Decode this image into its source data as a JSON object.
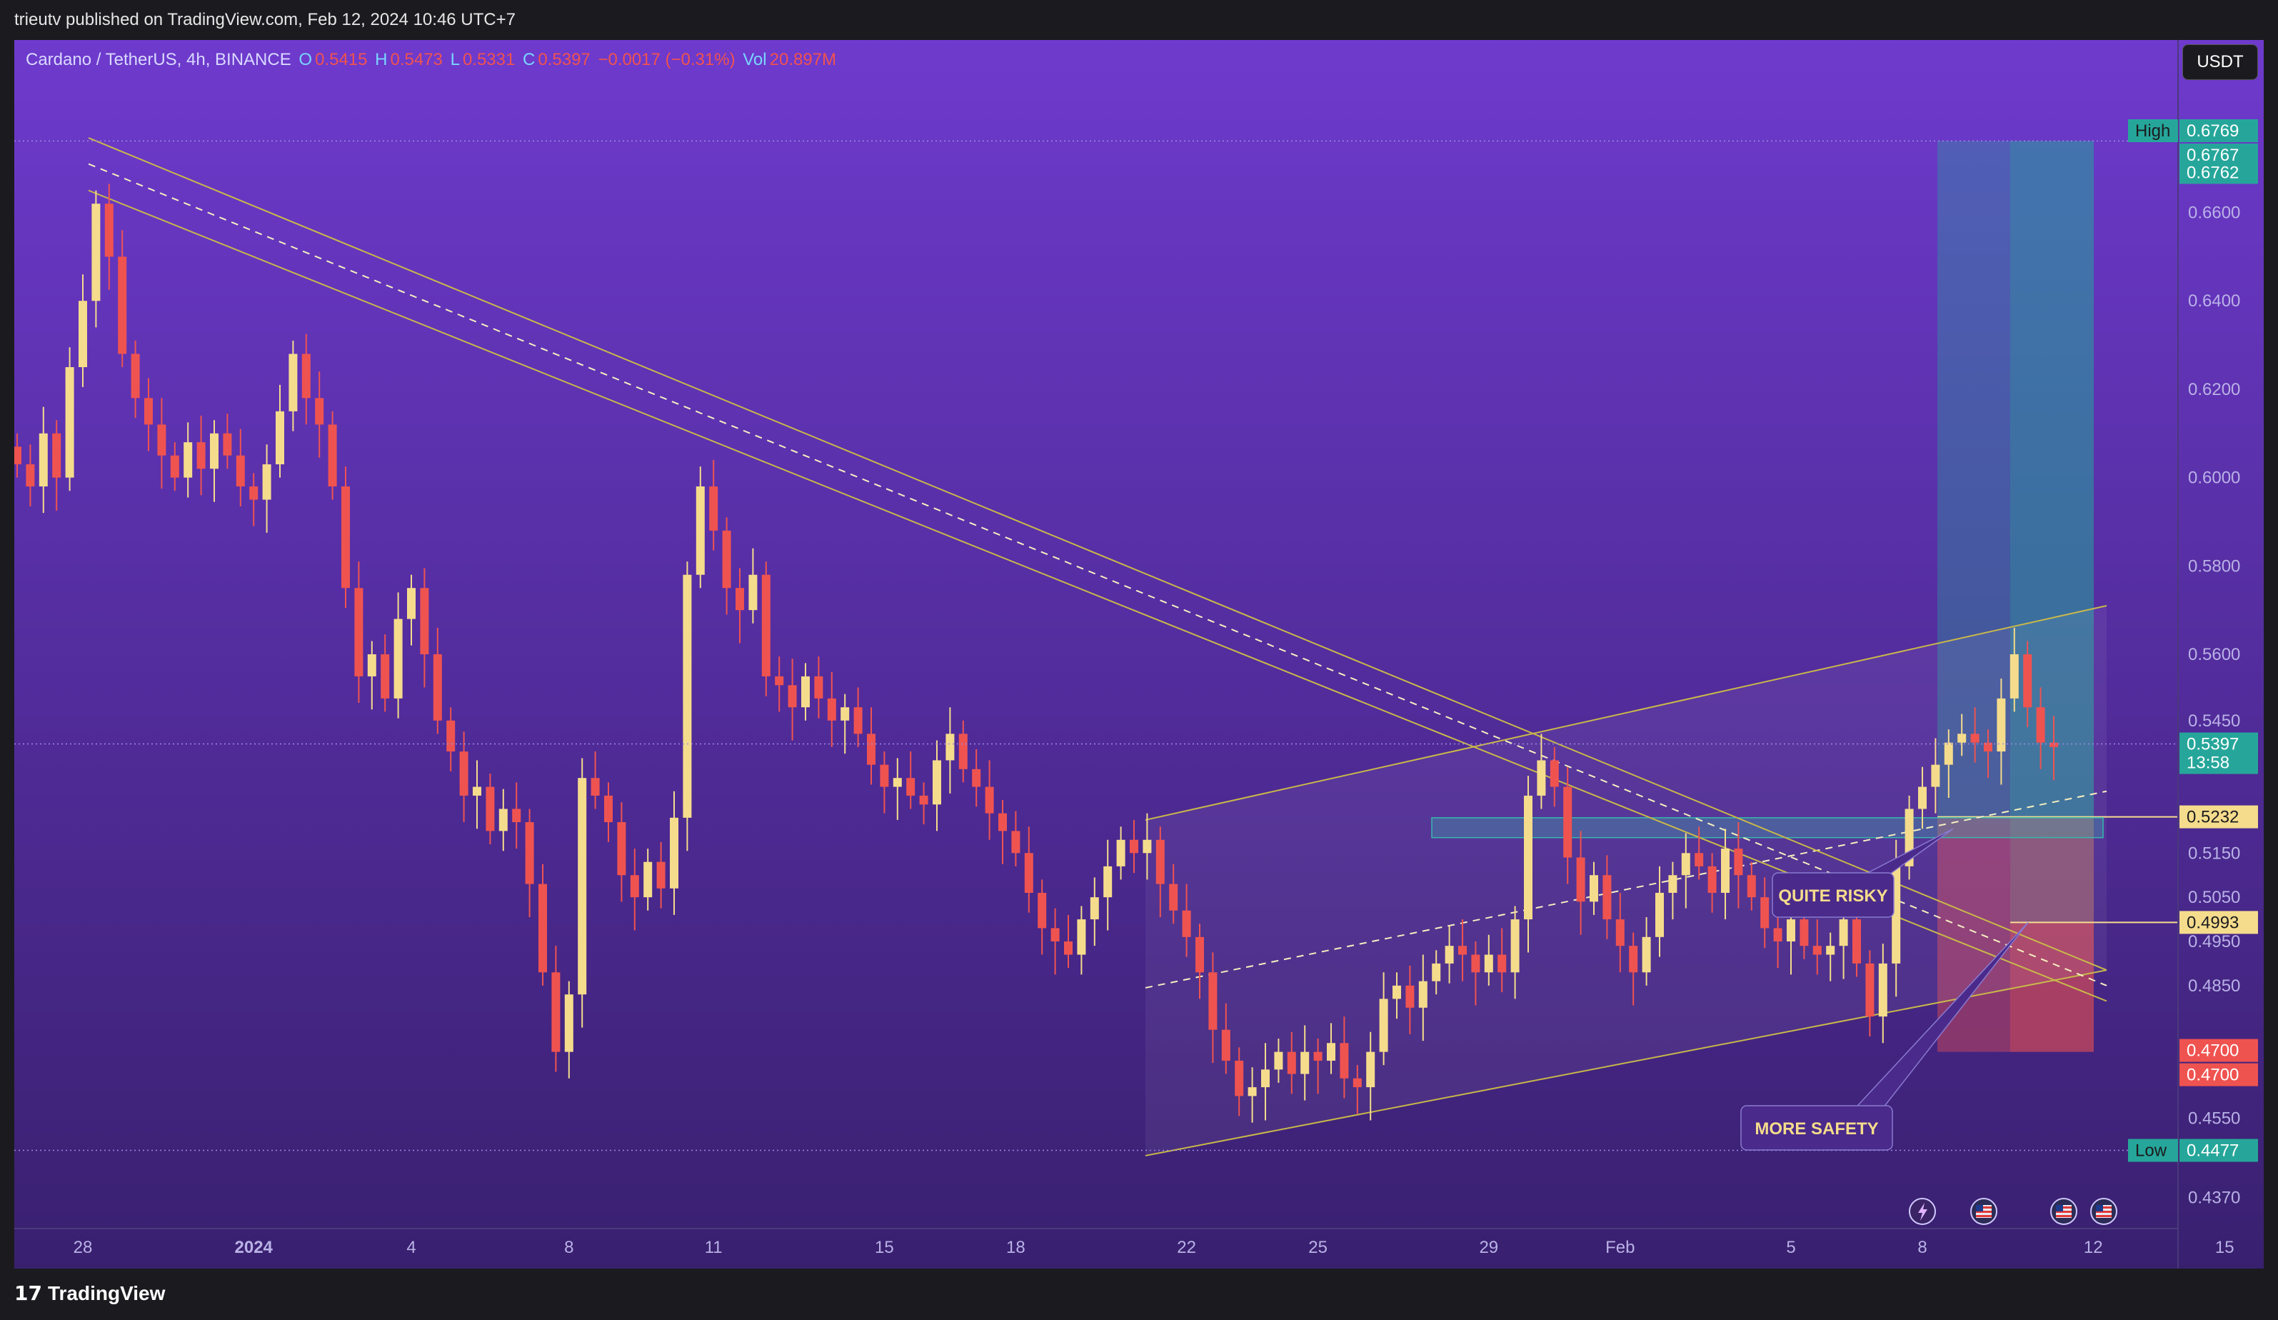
{
  "header": {
    "published_text": "trieutv published on TradingView.com, Feb 12, 2024 10:46 UTC+7"
  },
  "legend": {
    "symbol": "Cardano / TetherUS, 4h, BINANCE",
    "o_label": "O",
    "o_value": "0.5415",
    "h_label": "H",
    "h_value": "0.5473",
    "l_label": "L",
    "l_value": "0.5331",
    "c_label": "C",
    "c_value": "0.5397",
    "change": "−0.0017 (−0.31%)",
    "vol_label": "Vol",
    "vol_value": "20.897M"
  },
  "currency_button": "USDT",
  "footer": {
    "brand": "TradingView"
  },
  "colors": {
    "bull": "#f5dc8c",
    "bear": "#ef5350",
    "channel": "#c8b84a",
    "target_zone": "#26a69a",
    "stop_zone": "#ef5350",
    "background_top": "#6c38c8",
    "background_bottom": "#3a1f72"
  },
  "icons": [
    "lightning-icon",
    "us-flag-icon",
    "us-flag-icon",
    "us-flag-icon"
  ],
  "chart_data": {
    "type": "candlestick",
    "ylim": [
      0.43,
      0.69
    ],
    "y_ticks": [
      "0.6600",
      "0.6400",
      "0.6200",
      "0.6000",
      "0.5800",
      "0.5600",
      "0.5450",
      "0.5150",
      "0.5050",
      "0.4950",
      "0.4850",
      "0.4700",
      "0.4550",
      "0.4370"
    ],
    "x_ticks": [
      {
        "label": "28",
        "i": 5
      },
      {
        "label": "2024",
        "i": 18
      },
      {
        "label": "4",
        "i": 30
      },
      {
        "label": "8",
        "i": 42
      },
      {
        "label": "11",
        "i": 53
      },
      {
        "label": "15",
        "i": 66
      },
      {
        "label": "18",
        "i": 76
      },
      {
        "label": "22",
        "i": 89
      },
      {
        "label": "25",
        "i": 99
      },
      {
        "label": "29",
        "i": 112
      },
      {
        "label": "Feb",
        "i": 122
      },
      {
        "label": "5",
        "i": 135
      },
      {
        "label": "8",
        "i": 145
      },
      {
        "label": "12",
        "i": 158
      },
      {
        "label": "15",
        "i": 168
      }
    ],
    "price_labels": [
      {
        "tag": "High",
        "value": "0.6769",
        "kind": "high"
      },
      {
        "value": "0.6767",
        "kind": "green"
      },
      {
        "value": "0.6762",
        "kind": "green"
      },
      {
        "value": "0.5397",
        "sub": "13:58",
        "kind": "current"
      },
      {
        "value": "0.5232",
        "kind": "yellow"
      },
      {
        "value": "0.4993",
        "kind": "yellow"
      },
      {
        "value": "0.4700",
        "kind": "red"
      },
      {
        "value": "0.4700",
        "kind": "red"
      },
      {
        "tag": "Low",
        "value": "0.4477",
        "kind": "low"
      }
    ],
    "annotations": [
      "QUITE RISKY",
      "MORE SAFETY"
    ],
    "closes": [
      0.603,
      0.598,
      0.61,
      0.6,
      0.625,
      0.64,
      0.662,
      0.65,
      0.628,
      0.618,
      0.612,
      0.605,
      0.6,
      0.608,
      0.602,
      0.61,
      0.605,
      0.598,
      0.595,
      0.603,
      0.615,
      0.628,
      0.618,
      0.612,
      0.598,
      0.575,
      0.555,
      0.56,
      0.55,
      0.568,
      0.575,
      0.56,
      0.545,
      0.538,
      0.528,
      0.53,
      0.52,
      0.525,
      0.522,
      0.508,
      0.488,
      0.47,
      0.483,
      0.532,
      0.528,
      0.522,
      0.51,
      0.505,
      0.513,
      0.507,
      0.523,
      0.578,
      0.598,
      0.588,
      0.575,
      0.57,
      0.578,
      0.555,
      0.553,
      0.548,
      0.555,
      0.55,
      0.545,
      0.548,
      0.542,
      0.535,
      0.53,
      0.532,
      0.528,
      0.526,
      0.536,
      0.542,
      0.534,
      0.53,
      0.524,
      0.52,
      0.515,
      0.506,
      0.498,
      0.495,
      0.492,
      0.5,
      0.505,
      0.512,
      0.518,
      0.515,
      0.518,
      0.508,
      0.502,
      0.496,
      0.488,
      0.475,
      0.468,
      0.46,
      0.462,
      0.466,
      0.47,
      0.465,
      0.47,
      0.468,
      0.472,
      0.464,
      0.462,
      0.47,
      0.482,
      0.485,
      0.48,
      0.486,
      0.49,
      0.494,
      0.492,
      0.488,
      0.492,
      0.488,
      0.5,
      0.528,
      0.536,
      0.53,
      0.514,
      0.504,
      0.51,
      0.5,
      0.494,
      0.488,
      0.496,
      0.506,
      0.51,
      0.515,
      0.512,
      0.506,
      0.516,
      0.51,
      0.505,
      0.498,
      0.495,
      0.5,
      0.494,
      0.492,
      0.494,
      0.5,
      0.49,
      0.478,
      0.49,
      0.512,
      0.525,
      0.53,
      0.535,
      0.54,
      0.542,
      0.54,
      0.538,
      0.55,
      0.56,
      0.548,
      0.54,
      0.539
    ],
    "trade_setup": {
      "entry_aggressive": 0.5232,
      "entry_safe": 0.4993,
      "stop": 0.47,
      "target": 0.6762
    }
  }
}
